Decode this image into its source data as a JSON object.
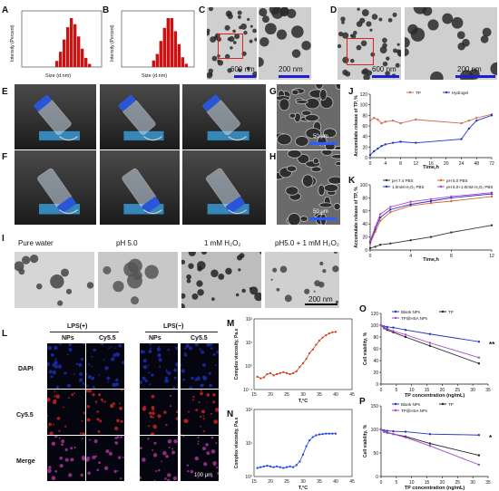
{
  "labels": {
    "A": "A",
    "B": "B",
    "C": "C",
    "D": "D",
    "E": "E",
    "F": "F",
    "G": "G",
    "H": "H",
    "I": "I",
    "J": "J",
    "K": "K",
    "L": "L",
    "M": "M",
    "N": "N",
    "O": "O",
    "P": "P"
  },
  "scalebars": {
    "c_left": "600 nm",
    "c_right": "200 nm",
    "d_left": "600 nm",
    "d_right": "200 nm",
    "g": "50 μm",
    "h": "50 μm",
    "i": "200 nm",
    "l": "100 μm"
  },
  "panel_i": {
    "titles": [
      "Pure water",
      "pH 5.0",
      "1 mM H₂O₂",
      "pH5.0 + 1 mM H₂O₂"
    ]
  },
  "panel_l": {
    "groups": [
      "LPS(+)",
      "LPS(−)"
    ],
    "columns": [
      "NPs",
      "Cy5.5",
      "NPs",
      "Cy5.5"
    ],
    "rows": [
      "DAPI",
      "Cy5.5",
      "Merge"
    ]
  },
  "chart_data": [
    {
      "id": "A",
      "type": "bar",
      "xlabel": "Size (d.nm)",
      "ylabel": "Intensity (Percent)",
      "values": [
        2,
        5,
        9,
        13,
        16,
        14,
        10,
        6,
        3,
        1
      ]
    },
    {
      "id": "B",
      "type": "bar",
      "xlabel": "Size (d.nm)",
      "ylabel": "Intensity (Percent)",
      "values": [
        2,
        4,
        8,
        12,
        15,
        15,
        11,
        7,
        3,
        1
      ]
    },
    {
      "id": "J",
      "type": "line",
      "xlabel": "Time,h",
      "ylabel": "Accumulate release of TP, %",
      "ylim": [
        0,
        120
      ],
      "xticks": [
        "0",
        "4",
        "8",
        "12",
        "16",
        "20",
        "24",
        "48",
        "72"
      ],
      "yticks": [
        "0",
        "20",
        "40",
        "60",
        "80",
        "100",
        "120"
      ],
      "series": [
        {
          "name": "TP",
          "color": "#d06a50",
          "x": [
            0,
            1,
            2,
            3,
            4,
            6,
            8,
            12,
            24,
            36,
            48,
            72
          ],
          "y": [
            70,
            75,
            72,
            65,
            68,
            70,
            65,
            72,
            65,
            70,
            75,
            82
          ]
        },
        {
          "name": "Hydrogel",
          "color": "#2233cc",
          "x": [
            0,
            1,
            2,
            3,
            4,
            6,
            8,
            12,
            24,
            36,
            48,
            72
          ],
          "y": [
            5,
            12,
            17,
            22,
            25,
            28,
            30,
            28,
            35,
            55,
            70,
            80
          ]
        }
      ]
    },
    {
      "id": "K",
      "type": "line",
      "xlabel": "Time,h",
      "ylabel": "Accumulate release of TP, %",
      "ylim": [
        0,
        100
      ],
      "xticks": [
        "0",
        "4",
        "8",
        "12"
      ],
      "yticks": [
        "0",
        "20",
        "40",
        "60",
        "80",
        "100"
      ],
      "series": [
        {
          "name": "pH 7.4 PBS",
          "color": "#333333",
          "x": [
            0,
            0.5,
            1,
            2,
            4,
            6,
            8,
            12
          ],
          "y": [
            3,
            5,
            8,
            10,
            15,
            20,
            27,
            38
          ]
        },
        {
          "name": "pH 5.0 PBS",
          "color": "#e06030",
          "x": [
            0,
            0.5,
            1,
            2,
            4,
            6,
            8,
            12
          ],
          "y": [
            10,
            28,
            45,
            58,
            68,
            72,
            75,
            82
          ]
        },
        {
          "name": "1.0mM H₂O₂ PBS",
          "color": "#2233cc",
          "x": [
            0,
            0.5,
            1,
            2,
            4,
            6,
            8,
            12
          ],
          "y": [
            12,
            32,
            50,
            62,
            70,
            75,
            80,
            86
          ]
        },
        {
          "name": "pH 5.0+1.0mM H₂O₂ PBS",
          "color": "#aa44cc",
          "x": [
            0,
            0.5,
            1,
            2,
            4,
            6,
            8,
            12
          ],
          "y": [
            14,
            35,
            55,
            66,
            74,
            78,
            82,
            88
          ]
        }
      ]
    },
    {
      "id": "M",
      "type": "scatter",
      "xlabel": "T,°C",
      "ylabel": "Complex viscosity, Pa.s",
      "xticks": [
        "15",
        "20",
        "25",
        "30",
        "35",
        "40",
        "45"
      ],
      "yticks": [
        "10⁻¹",
        "10⁰",
        "10¹",
        "10²"
      ],
      "series": [
        {
          "color": "#d04020",
          "x": [
            16,
            17,
            18,
            19,
            20,
            21,
            22,
            23,
            24,
            25,
            26,
            27,
            28,
            29,
            30,
            31,
            32,
            33,
            34,
            35,
            36,
            37,
            38,
            39,
            40
          ],
          "y": [
            0.35,
            0.3,
            0.33,
            0.45,
            0.5,
            0.4,
            0.45,
            0.5,
            0.55,
            0.5,
            0.45,
            0.5,
            0.6,
            0.9,
            1.3,
            2.0,
            3.5,
            5,
            8,
            12,
            16,
            20,
            24,
            27,
            28
          ]
        }
      ]
    },
    {
      "id": "N",
      "type": "scatter",
      "xlabel": "T,°C",
      "ylabel": "Complex viscosity, Pa.s",
      "xticks": [
        "15",
        "20",
        "25",
        "30",
        "35",
        "40",
        "45"
      ],
      "yticks": [
        "10⁰",
        "10¹",
        "10²"
      ],
      "series": [
        {
          "color": "#2244dd",
          "x": [
            16,
            17,
            18,
            19,
            20,
            21,
            22,
            23,
            24,
            25,
            26,
            27,
            28,
            29,
            30,
            31,
            32,
            33,
            34,
            35,
            36,
            37,
            38,
            39,
            40
          ],
          "y": [
            1.8,
            1.9,
            2.0,
            2.1,
            2.0,
            1.9,
            2.0,
            1.9,
            1.8,
            1.9,
            2.0,
            1.9,
            2.2,
            2.8,
            4.5,
            8,
            12,
            15,
            17,
            18,
            18.5,
            19,
            19,
            19,
            19
          ]
        }
      ]
    },
    {
      "id": "O",
      "type": "line",
      "xlabel": "TP concentration (ng/mL)",
      "ylabel": "Cell viability, %",
      "ylim": [
        0,
        120
      ],
      "xticks": [
        "0",
        "5",
        "10",
        "15",
        "20",
        "25",
        "30",
        "35"
      ],
      "yticks": [
        "0",
        "20",
        "40",
        "60",
        "80",
        "100",
        "120"
      ],
      "annotation": "**",
      "series": [
        {
          "name": "Blank NPs",
          "color": "#2233cc",
          "x": [
            0,
            1,
            2,
            4,
            8,
            16,
            32
          ],
          "y": [
            100,
            98,
            97,
            96,
            92,
            85,
            72
          ]
        },
        {
          "name": "TP",
          "color": "#222222",
          "x": [
            0,
            1,
            2,
            4,
            8,
            16,
            32
          ],
          "y": [
            100,
            95,
            92,
            88,
            80,
            65,
            35
          ]
        },
        {
          "name": "TP@HSA NPs",
          "color": "#aa44cc",
          "x": [
            0,
            1,
            2,
            4,
            8,
            16,
            32
          ],
          "y": [
            100,
            96,
            94,
            90,
            84,
            70,
            45
          ]
        }
      ]
    },
    {
      "id": "P",
      "type": "line",
      "xlabel": "TP concentration (ng/mL)",
      "ylabel": "Cell viability, %",
      "ylim": [
        0,
        150
      ],
      "xticks": [
        "0",
        "5",
        "10",
        "15",
        "20",
        "25",
        "30",
        "35"
      ],
      "yticks": [
        "0",
        "50",
        "100",
        "150"
      ],
      "annotation": "*",
      "series": [
        {
          "name": "Blank NPs",
          "color": "#2233cc",
          "x": [
            0,
            1,
            2,
            4,
            8,
            16,
            32
          ],
          "y": [
            100,
            98,
            97,
            96,
            95,
            90,
            88
          ]
        },
        {
          "name": "TP",
          "color": "#222222",
          "x": [
            0,
            1,
            2,
            4,
            8,
            16,
            32
          ],
          "y": [
            100,
            95,
            93,
            90,
            85,
            70,
            45
          ]
        },
        {
          "name": "TP@HSA NPs",
          "color": "#aa44cc",
          "x": [
            0,
            1,
            2,
            4,
            8,
            16,
            32
          ],
          "y": [
            100,
            96,
            94,
            90,
            83,
            65,
            25
          ]
        }
      ]
    }
  ]
}
